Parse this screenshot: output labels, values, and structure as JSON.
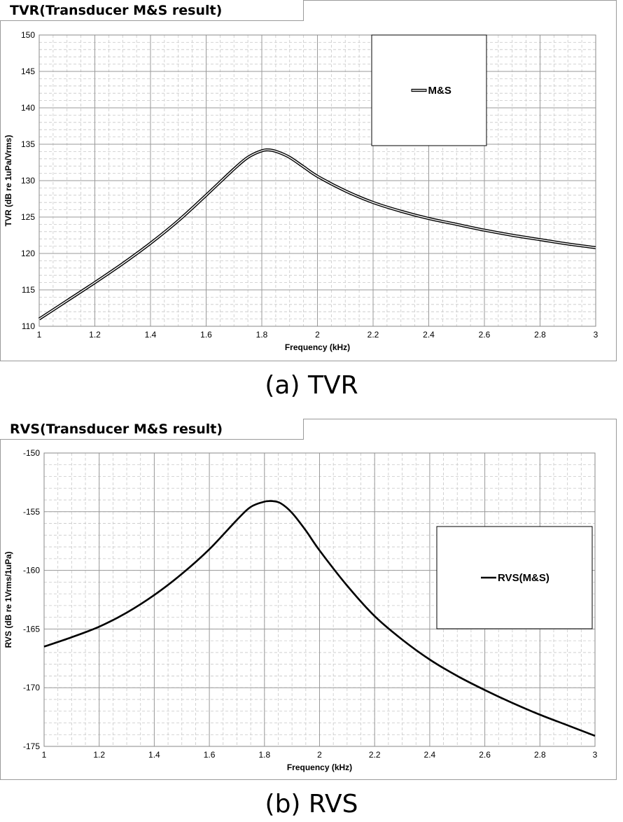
{
  "chart_data": [
    {
      "id": "tvr",
      "type": "line",
      "title": "TVR(Transducer M&S result)",
      "xlabel": "Frequency (kHz)",
      "ylabel": "TVR (dB re 1uPa/Vrms)",
      "xlim": [
        1,
        3
      ],
      "ylim": [
        110,
        150
      ],
      "xticks": [
        "1",
        "1.2",
        "1.4",
        "1.6",
        "1.8",
        "2",
        "2.2",
        "2.4",
        "2.6",
        "2.8",
        "3"
      ],
      "yticks": [
        "110",
        "115",
        "120",
        "125",
        "130",
        "135",
        "140",
        "145",
        "150"
      ],
      "grid": true,
      "legend": {
        "position": "top-right",
        "entries": [
          "M&S"
        ]
      },
      "series": [
        {
          "name": "M&S",
          "style": "double-line",
          "color": "#000000",
          "x": [
            1.0,
            1.1,
            1.2,
            1.3,
            1.4,
            1.5,
            1.6,
            1.7,
            1.75,
            1.8,
            1.83,
            1.86,
            1.9,
            1.95,
            2.0,
            2.1,
            2.2,
            2.3,
            2.4,
            2.5,
            2.6,
            2.7,
            2.8,
            2.9,
            3.0
          ],
          "y": [
            111,
            113.5,
            116,
            118.6,
            121.4,
            124.5,
            128,
            131.6,
            133.2,
            134.1,
            134.2,
            133.9,
            133.2,
            131.9,
            130.6,
            128.6,
            127,
            125.8,
            124.8,
            124,
            123.2,
            122.5,
            121.9,
            121.3,
            120.8
          ]
        }
      ]
    },
    {
      "id": "rvs",
      "type": "line",
      "title": "RVS(Transducer M&S result)",
      "xlabel": "Frequency (kHz)",
      "ylabel": "RVS (dB re 1Vrms/1uPa)",
      "xlim": [
        1,
        3
      ],
      "ylim": [
        -175,
        -150
      ],
      "xticks": [
        "1",
        "1.2",
        "1.4",
        "1.6",
        "1.8",
        "2",
        "2.2",
        "2.4",
        "2.6",
        "2.8",
        "3"
      ],
      "yticks": [
        "-175",
        "-170",
        "-165",
        "-160",
        "-155",
        "-150"
      ],
      "grid": true,
      "legend": {
        "position": "right",
        "entries": [
          "RVS(M&S)"
        ]
      },
      "series": [
        {
          "name": "RVS(M&S)",
          "style": "solid",
          "color": "#000000",
          "x": [
            1.0,
            1.1,
            1.2,
            1.3,
            1.4,
            1.5,
            1.6,
            1.7,
            1.75,
            1.8,
            1.83,
            1.86,
            1.9,
            1.95,
            2.0,
            2.1,
            2.2,
            2.3,
            2.4,
            2.5,
            2.6,
            2.7,
            2.8,
            2.9,
            3.0
          ],
          "y": [
            -166.5,
            -165.7,
            -164.8,
            -163.6,
            -162.1,
            -160.3,
            -158.2,
            -155.7,
            -154.6,
            -154.15,
            -154.1,
            -154.3,
            -155.1,
            -156.6,
            -158.3,
            -161.3,
            -163.9,
            -165.9,
            -167.6,
            -169.0,
            -170.2,
            -171.3,
            -172.3,
            -173.2,
            -174.1
          ]
        }
      ]
    }
  ],
  "captions": {
    "a": "(a) TVR",
    "b": "(b) RVS"
  }
}
